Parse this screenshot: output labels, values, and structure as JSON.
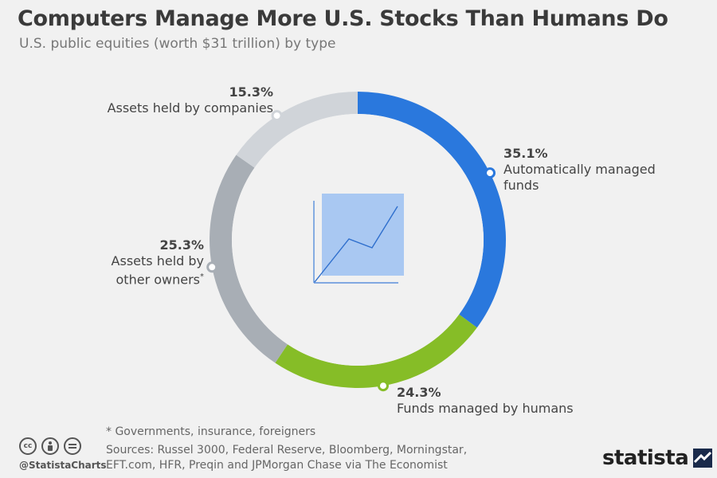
{
  "header": {
    "title": "Computers Manage More U.S. Stocks Than Humans Do",
    "subtitle": "U.S. public equities (worth $31 trillion) by type"
  },
  "chart_data": {
    "type": "pie",
    "donut": true,
    "slices": [
      {
        "label": "Automatically managed funds",
        "value": 35.1,
        "display": "35.1%",
        "color": "#2a78dd"
      },
      {
        "label": "Funds managed by humans",
        "value": 24.3,
        "display": "24.3%",
        "color": "#86bd27"
      },
      {
        "label": "Assets held by other owners*",
        "value": 25.3,
        "display": "25.3%",
        "color": "#a8aeb5"
      },
      {
        "label": "Assets held by companies",
        "value": 15.3,
        "display": "15.3%",
        "color": "#d0d4d9"
      }
    ]
  },
  "labels": {
    "auto": {
      "pct": "35.1%",
      "line1": "Automatically managed",
      "line2": "funds"
    },
    "human": {
      "pct": "24.3%",
      "line1": "Funds managed by humans"
    },
    "other": {
      "pct": "25.3%",
      "line1": "Assets held by",
      "line2": "other owners",
      "sup": "*"
    },
    "companies": {
      "pct": "15.3%",
      "line1": "Assets held by companies"
    }
  },
  "footer": {
    "footnote": "* Governments, insurance, foreigners",
    "sources_line1": "Sources: Russel 3000, Federal Reserve, Bloomberg, Morningstar,",
    "sources_line2": "EFT.com, HFR, Preqin and JPMorgan Chase via The Economist",
    "handle": "@StatistaCharts",
    "brand": "statista",
    "cc_icons": [
      "cc",
      "by",
      "nd"
    ]
  }
}
